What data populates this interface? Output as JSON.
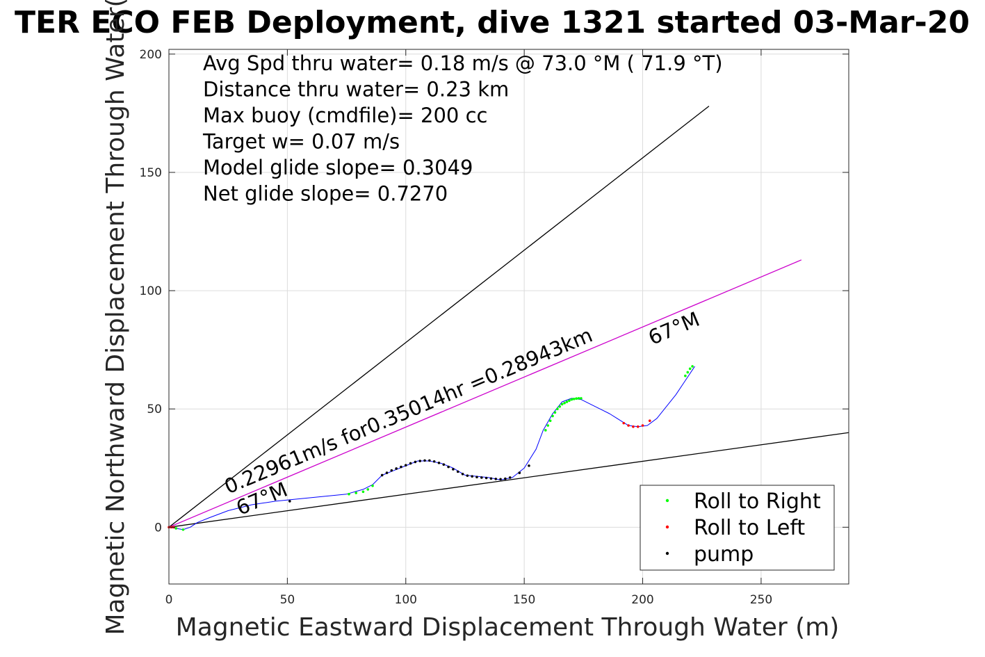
{
  "chart_data": {
    "type": "line",
    "title": "TER ECO FEB Deployment, dive 1321 started 03-Mar-20",
    "xlabel": "Magnetic Eastward Displacement Through Water (m)",
    "ylabel": "Magnetic Northward Displacement Through Water(",
    "xlim": [
      0,
      287
    ],
    "ylim": [
      -24,
      202
    ],
    "xticks": [
      0,
      50,
      100,
      150,
      200,
      250
    ],
    "yticks": [
      0,
      50,
      100,
      150,
      200
    ],
    "grid": true,
    "legend_position": "bottom-right",
    "stats": [
      "Avg Spd thru water=  0.18 m/s @  73.0 °M ( 71.9 °T)",
      "Distance thru water=  0.23 km",
      "Max buoy (cmdfile)= 200 cc",
      "Target w= 0.07 m/s",
      "Model glide slope= 0.3049",
      "Net glide slope= 0.7270"
    ],
    "annotations": [
      {
        "text": "0.22961m/s for0.35014hr =0.28943km",
        "x": 25,
        "y": 14,
        "rotate_deg": -22.8
      },
      {
        "text": "67°M",
        "x": 30,
        "y": 5,
        "rotate_deg": -22.8
      },
      {
        "text": "67°M",
        "x": 204,
        "y": 77,
        "rotate_deg": -22.8
      }
    ],
    "reference_lines": [
      {
        "name": "upper bound",
        "color": "#000000",
        "x": [
          0,
          228
        ],
        "y": [
          0,
          178
        ]
      },
      {
        "name": "lower bound",
        "color": "#000000",
        "x": [
          0,
          287
        ],
        "y": [
          0,
          40
        ]
      },
      {
        "name": "heading",
        "color": "#cc00cc",
        "x": [
          0,
          267
        ],
        "y": [
          0,
          113
        ]
      }
    ],
    "track": {
      "color": "#0000ff",
      "x": [
        0,
        3,
        6,
        9,
        12,
        17,
        25,
        35,
        45,
        55,
        65,
        75,
        82,
        86,
        90,
        95,
        100,
        105,
        110,
        115,
        120,
        125,
        130,
        135,
        140,
        145,
        150,
        155,
        158,
        162,
        166,
        170,
        174,
        178,
        182,
        186,
        190,
        194,
        198,
        202,
        206,
        210,
        214,
        218,
        222
      ],
      "y": [
        0,
        -0.5,
        -1,
        0,
        2,
        4,
        7,
        9.5,
        11,
        12,
        13,
        14,
        16,
        18,
        22,
        24,
        26,
        28,
        28,
        27,
        25,
        22,
        21.5,
        21,
        20,
        21,
        25,
        33,
        41,
        48,
        53,
        54.5,
        54,
        52,
        50,
        48,
        45.5,
        43,
        42.5,
        43,
        46,
        51,
        56,
        62,
        68
      ]
    },
    "series": [
      {
        "name": "Roll to Right",
        "color": "#00ff00",
        "x": [
          3,
          6,
          76,
          79,
          82,
          84,
          86,
          159,
          160,
          161,
          162,
          163,
          164,
          165,
          166,
          167,
          168,
          169,
          170,
          171,
          172,
          173,
          174,
          218,
          219,
          220,
          221
        ],
        "y": [
          -0.5,
          -1,
          14,
          14.5,
          15,
          16,
          17.5,
          41,
          43,
          45,
          47,
          48.5,
          50,
          51,
          52,
          52.5,
          53,
          53.5,
          54,
          54.2,
          54.4,
          54.5,
          54.5,
          64,
          65.5,
          67,
          68
        ]
      },
      {
        "name": "Roll to Left",
        "color": "#ff0000",
        "x": [
          0,
          1,
          2,
          192,
          194,
          196,
          198,
          200,
          203
        ],
        "y": [
          0,
          0,
          0,
          44,
          43,
          42.5,
          42.5,
          43,
          45
        ]
      },
      {
        "name": "pump",
        "color": "#000000",
        "x": [
          51,
          90,
          92,
          94,
          96,
          98,
          100,
          102,
          104,
          106,
          108,
          110,
          112,
          114,
          116,
          118,
          120,
          122,
          124,
          126,
          128,
          130,
          132,
          134,
          136,
          138,
          140,
          142,
          144,
          148,
          152
        ],
        "y": [
          11,
          22,
          23,
          24,
          24.8,
          25.5,
          26.2,
          27,
          27.6,
          28,
          28.2,
          28.2,
          27.8,
          27.2,
          26.5,
          25.5,
          24.5,
          23.5,
          22.5,
          21.8,
          21.5,
          21.2,
          21,
          20.8,
          20.6,
          20.4,
          20.3,
          20.5,
          21,
          23,
          26
        ]
      }
    ],
    "legend": [
      {
        "label": "Roll to Right",
        "color": "#00ff00"
      },
      {
        "label": "Roll to Left",
        "color": "#ff0000"
      },
      {
        "label": "pump",
        "color": "#000000"
      }
    ]
  }
}
